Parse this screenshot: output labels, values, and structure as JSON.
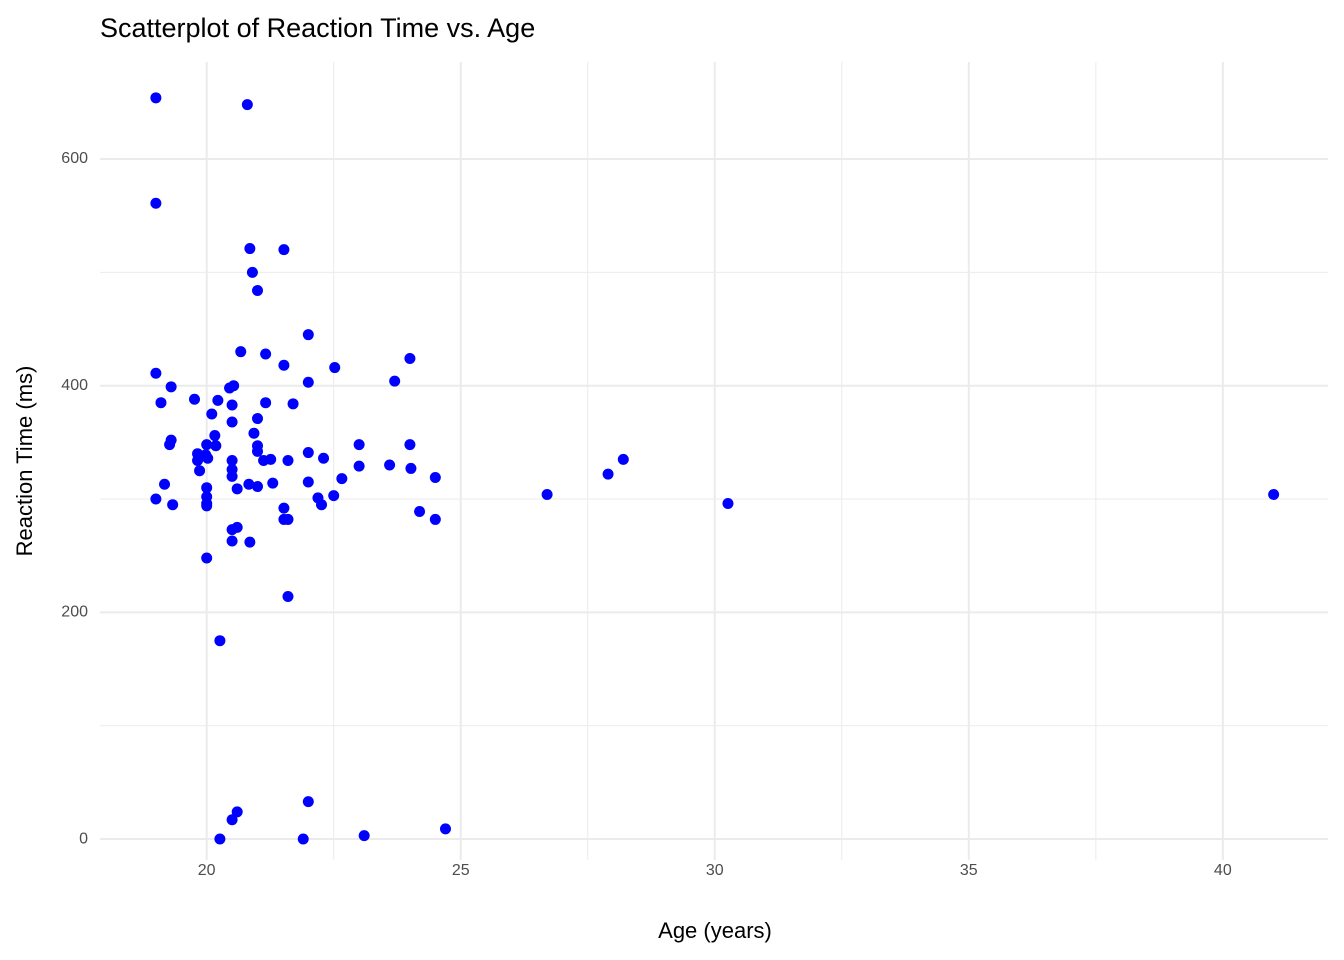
{
  "chart_data": {
    "type": "scatter",
    "title": "Scatterplot of Reaction Time vs. Age",
    "x_label": "Age (years)",
    "y_label": "Reaction Time (ms)",
    "color": "#0000ff",
    "grid": true,
    "xlim": [
      17.9,
      42.07
    ],
    "ylim": [
      -18.5,
      685.6
    ],
    "xticks": [
      20,
      25,
      30,
      35,
      40
    ],
    "yticks": [
      0,
      200,
      400,
      600
    ],
    "x": [
      19,
      20.8,
      19,
      20.85,
      21.52,
      20.9,
      21.0,
      22.0,
      24.0,
      20.67,
      21.16,
      21.52,
      22.52,
      19,
      22.0,
      23.7,
      19.3,
      20.45,
      20.53,
      19.76,
      20.22,
      19.1,
      21.16,
      21.7,
      20.5,
      20.1,
      21.0,
      20.5,
      20.93,
      20.16,
      19.3,
      19.27,
      20.0,
      20.18,
      21.0,
      23.0,
      24.0,
      21.0,
      22.0,
      19.82,
      19.98,
      20.02,
      19.82,
      20.5,
      21.12,
      21.26,
      21.6,
      22.3,
      28.2,
      23.6,
      23.0,
      24.02,
      19.86,
      20.5,
      20.5,
      27.9,
      24.5,
      22.66,
      21.3,
      22.0,
      19.17,
      20.83,
      21.0,
      20.0,
      20.6,
      26.7,
      41.0,
      22.5,
      19.0,
      20.0,
      22.19,
      20.0,
      30.26,
      19.33,
      20.0,
      22.26,
      21.52,
      24.19,
      21.52,
      21.6,
      24.5,
      20.6,
      20.5,
      20.5,
      20.85,
      20.0,
      21.6,
      20.26,
      22.0,
      20.6,
      20.5,
      24.7,
      23.1,
      20.26,
      21.9
    ],
    "values": [
      654,
      648,
      561,
      521,
      520,
      500,
      484,
      445,
      424,
      430,
      428,
      418,
      416,
      411,
      403,
      404,
      399,
      398,
      400,
      388,
      387,
      385,
      385,
      384,
      383,
      375,
      371,
      368,
      358,
      356,
      352,
      348,
      348,
      347,
      347,
      348,
      348,
      342,
      341,
      340,
      339,
      336,
      334,
      334,
      334,
      335,
      334,
      336,
      335,
      330,
      329,
      327,
      325,
      326,
      320,
      322,
      319,
      318,
      314,
      315,
      313,
      313,
      311,
      310,
      309,
      304,
      304,
      303,
      300,
      302,
      301,
      296,
      296,
      295,
      294,
      295,
      292,
      289,
      282,
      282,
      282,
      275,
      273,
      263,
      262,
      248,
      214,
      175,
      33,
      24,
      17,
      9,
      3,
      0,
      0
    ]
  }
}
